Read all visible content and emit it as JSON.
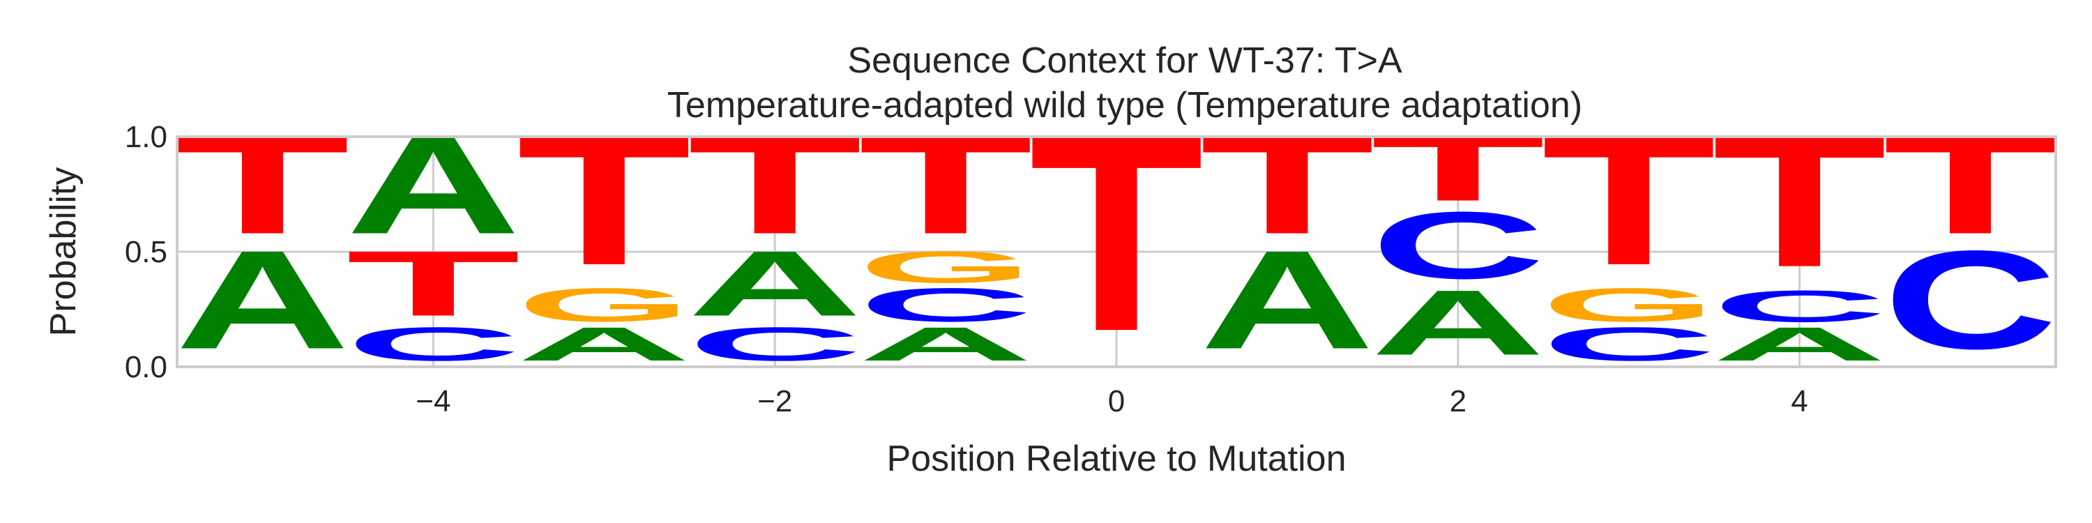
{
  "chart_data": {
    "type": "sequence-logo",
    "title": "Sequence Context for WT-37: T>A",
    "subtitle": "Temperature-adapted wild type (Temperature adaptation)",
    "xlabel": "Position Relative to Mutation",
    "ylabel": "Probability",
    "xlim": [
      -5.5,
      5.5
    ],
    "ylim": [
      0,
      1
    ],
    "x_ticks": [
      -4,
      -2,
      0,
      2,
      4
    ],
    "x_tick_labels": [
      "−4",
      "−2",
      "0",
      "2",
      "4"
    ],
    "y_ticks": [
      0,
      0.5,
      1
    ],
    "y_tick_labels": [
      "0.0",
      "0.5",
      "1.0"
    ],
    "grid": true,
    "colors": {
      "A": "#008000",
      "C": "#0000ff",
      "G": "#ffa500",
      "T": "#ff0000"
    },
    "positions": [
      {
        "x": -5,
        "letters": [
          {
            "base": "A",
            "p": 0.5
          },
          {
            "base": "T",
            "p": 0.5
          }
        ]
      },
      {
        "x": -4,
        "letters": [
          {
            "base": "C",
            "p": 0.17
          },
          {
            "base": "T",
            "p": 0.33
          },
          {
            "base": "A",
            "p": 0.5
          }
        ]
      },
      {
        "x": -3,
        "letters": [
          {
            "base": "A",
            "p": 0.17
          },
          {
            "base": "G",
            "p": 0.17
          },
          {
            "base": "T",
            "p": 0.66
          }
        ]
      },
      {
        "x": -2,
        "letters": [
          {
            "base": "C",
            "p": 0.17
          },
          {
            "base": "A",
            "p": 0.33
          },
          {
            "base": "T",
            "p": 0.5
          }
        ]
      },
      {
        "x": -1,
        "letters": [
          {
            "base": "A",
            "p": 0.17
          },
          {
            "base": "C",
            "p": 0.17
          },
          {
            "base": "G",
            "p": 0.16
          },
          {
            "base": "T",
            "p": 0.5
          }
        ]
      },
      {
        "x": 0,
        "letters": [
          {
            "base": "T",
            "p": 1.0
          }
        ]
      },
      {
        "x": 1,
        "letters": [
          {
            "base": "A",
            "p": 0.5
          },
          {
            "base": "T",
            "p": 0.5
          }
        ]
      },
      {
        "x": 2,
        "letters": [
          {
            "base": "A",
            "p": 0.33
          },
          {
            "base": "C",
            "p": 0.34
          },
          {
            "base": "T",
            "p": 0.33
          }
        ]
      },
      {
        "x": 3,
        "letters": [
          {
            "base": "C",
            "p": 0.17
          },
          {
            "base": "G",
            "p": 0.17
          },
          {
            "base": "T",
            "p": 0.66
          }
        ]
      },
      {
        "x": 4,
        "letters": [
          {
            "base": "A",
            "p": 0.17
          },
          {
            "base": "C",
            "p": 0.16
          },
          {
            "base": "T",
            "p": 0.67
          }
        ]
      },
      {
        "x": 5,
        "letters": [
          {
            "base": "C",
            "p": 0.5
          },
          {
            "base": "T",
            "p": 0.5
          }
        ]
      }
    ]
  }
}
